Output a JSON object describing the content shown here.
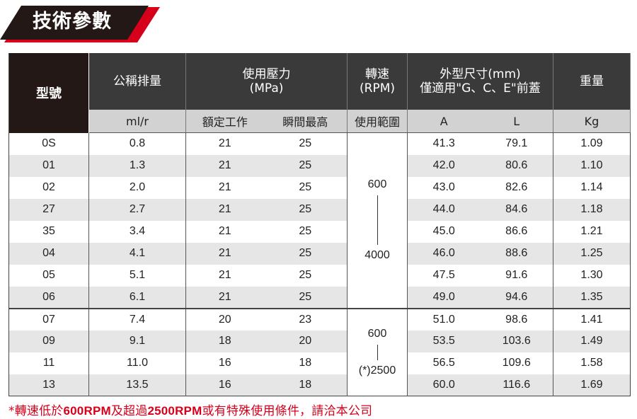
{
  "banner": {
    "title": "技術參數",
    "accent_color": "#d7001b",
    "dark_color": "#231815"
  },
  "headers": {
    "model": "型號",
    "displacement": "公稱排量",
    "pressure_line1": "使用壓力",
    "pressure_line2": "(MPa)",
    "speed_line1": "轉速",
    "speed_line2": "(RPM)",
    "dim_line1": "外型尺寸(mm)",
    "dim_line2": "僅適用\"G、C、E\"前蓋",
    "weight": "重量"
  },
  "subheaders": {
    "displacement_unit": "ml/r",
    "rated": "額定工作",
    "peak": "瞬間最高",
    "range": "使用範圍",
    "dim_a": "A",
    "dim_l": "L",
    "weight_unit": "Kg"
  },
  "rows": [
    {
      "model": "0S",
      "disp": "0.8",
      "rated": "21",
      "peak": "25",
      "a": "41.3",
      "l": "79.1",
      "kg": "1.09"
    },
    {
      "model": "01",
      "disp": "1.3",
      "rated": "21",
      "peak": "25",
      "a": "42.0",
      "l": "80.6",
      "kg": "1.10"
    },
    {
      "model": "02",
      "disp": "2.0",
      "rated": "21",
      "peak": "25",
      "a": "43.0",
      "l": "82.6",
      "kg": "1.14"
    },
    {
      "model": "27",
      "disp": "2.7",
      "rated": "21",
      "peak": "25",
      "a": "44.0",
      "l": "84.6",
      "kg": "1.18"
    },
    {
      "model": "35",
      "disp": "3.4",
      "rated": "21",
      "peak": "25",
      "a": "45.0",
      "l": "86.6",
      "kg": "1.21"
    },
    {
      "model": "04",
      "disp": "4.1",
      "rated": "21",
      "peak": "25",
      "a": "46.0",
      "l": "88.6",
      "kg": "1.25"
    },
    {
      "model": "05",
      "disp": "5.1",
      "rated": "21",
      "peak": "25",
      "a": "47.5",
      "l": "91.6",
      "kg": "1.30"
    },
    {
      "model": "06",
      "disp": "6.1",
      "rated": "21",
      "peak": "25",
      "a": "49.0",
      "l": "94.6",
      "kg": "1.35"
    },
    {
      "model": "07",
      "disp": "7.4",
      "rated": "20",
      "peak": "23",
      "a": "51.0",
      "l": "98.6",
      "kg": "1.41"
    },
    {
      "model": "09",
      "disp": "9.1",
      "rated": "18",
      "peak": "20",
      "a": "53.5",
      "l": "103.6",
      "kg": "1.49"
    },
    {
      "model": "11",
      "disp": "11.0",
      "rated": "16",
      "peak": "18",
      "a": "56.5",
      "l": "109.6",
      "kg": "1.58"
    },
    {
      "model": "13",
      "disp": "13.5",
      "rated": "16",
      "peak": "18",
      "a": "60.0",
      "l": "116.6",
      "kg": "1.69"
    }
  ],
  "rpm_groups": [
    {
      "min": "600",
      "max": "4000"
    },
    {
      "min": "600",
      "max": "(*)2500"
    }
  ],
  "footnote": {
    "prefix": "*轉速低於",
    "low": "600RPM",
    "mid": "及超過",
    "high": "2500RPM",
    "suffix": "或有特殊使用條件，請洽本公司"
  }
}
